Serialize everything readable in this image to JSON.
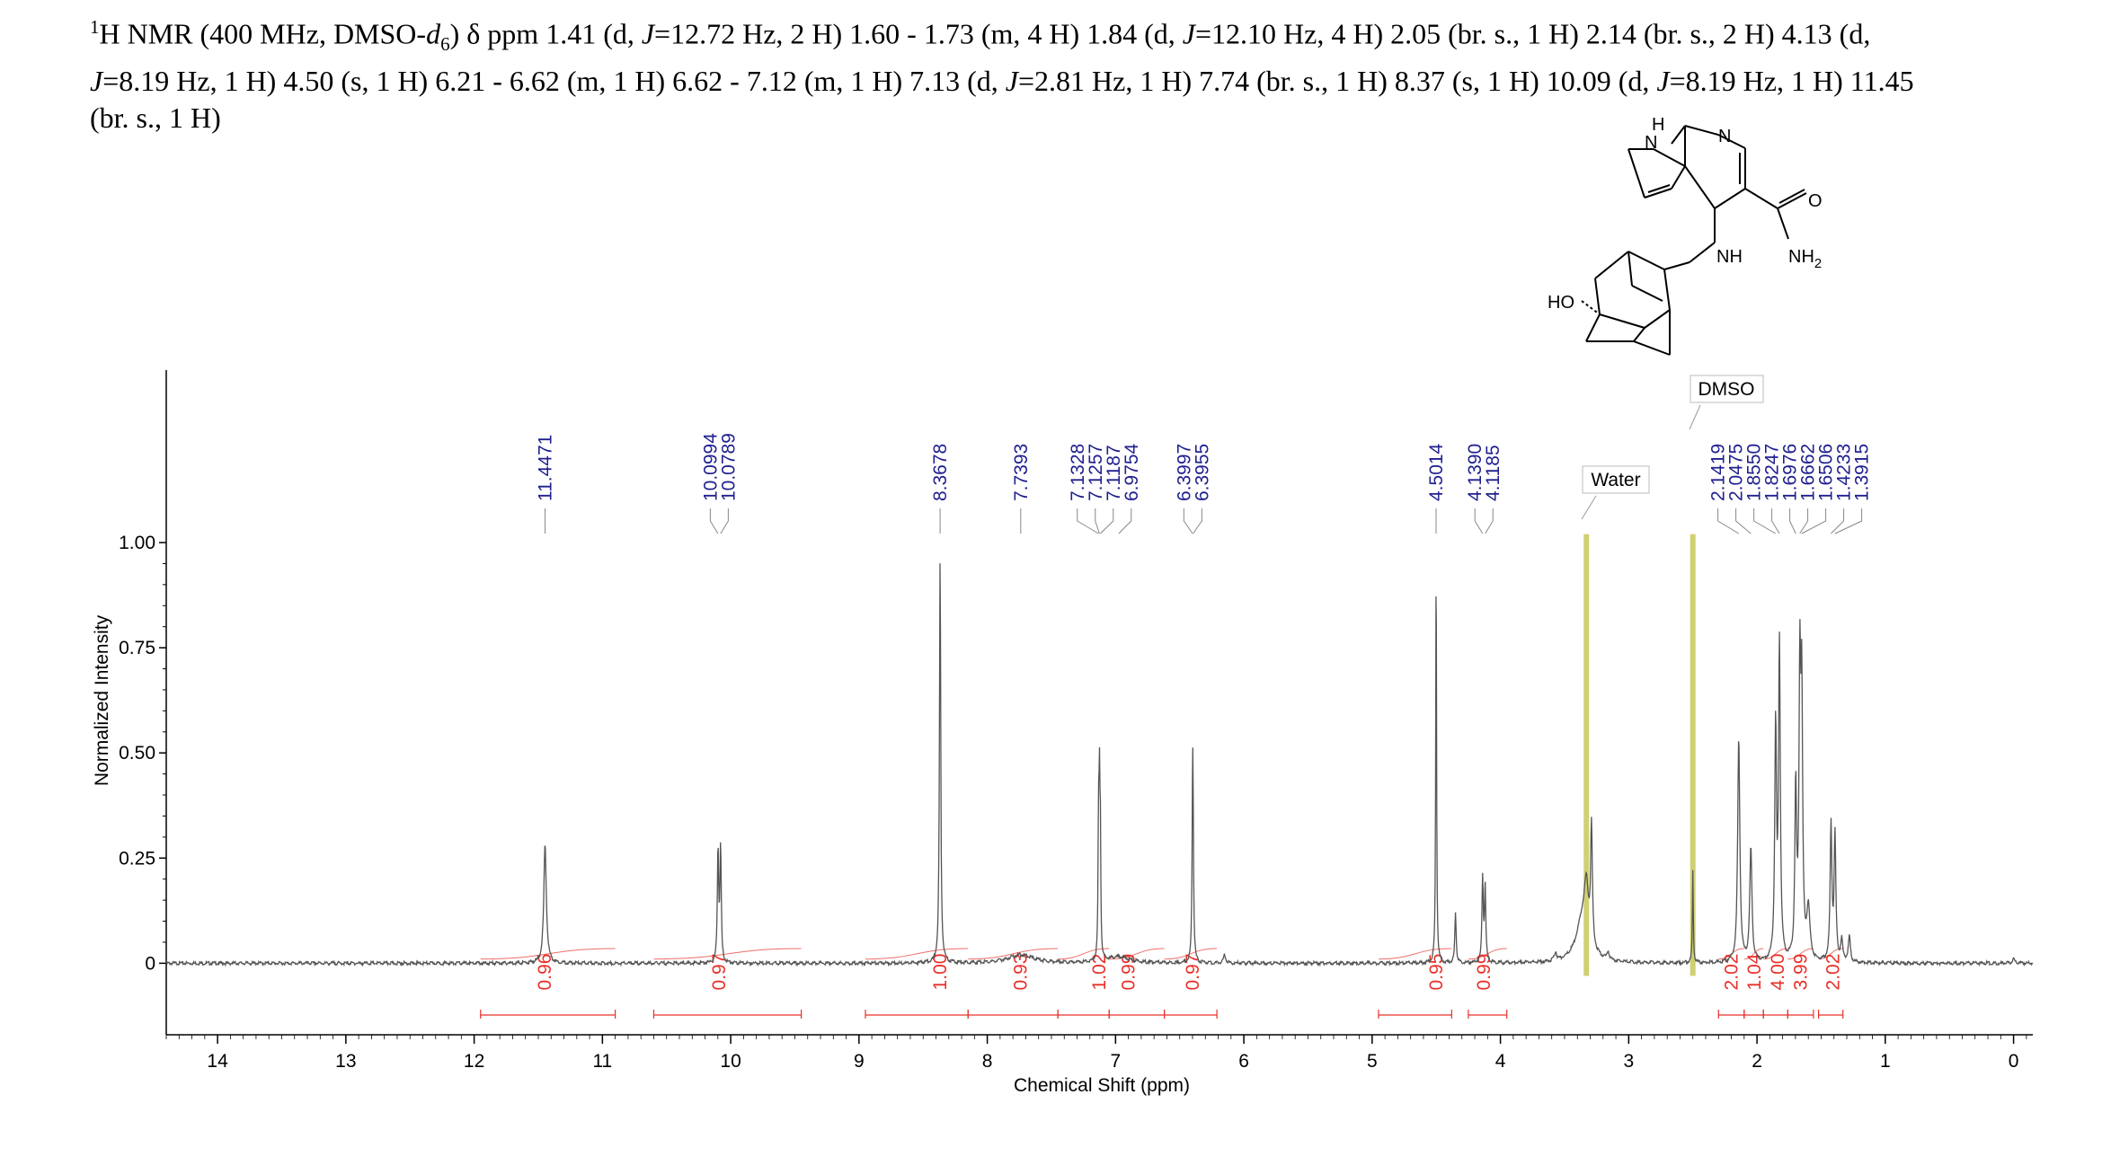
{
  "header": {
    "prefix": "1",
    "line1a": "H NMR (400 MHz, DMSO-",
    "line1_d": "d",
    "line1_sub": "6",
    "line1b": ") δ ppm 1.41 (d, ",
    "j1": "J",
    "line1c": "=12.72 Hz, 2 H) 1.60 - 1.73 (m, 4 H) 1.84 (d, ",
    "j2": "J",
    "line1d": "=12.10 Hz, 4 H) 2.05 (br. s., 1 H) 2.14 (br. s., 2 H) 4.13 (d,",
    "j3": "J",
    "line2a": "=8.19 Hz, 1 H) 4.50 (s, 1 H) 6.21 - 6.62 (m, 1 H) 6.62 - 7.12 (m, 1 H) 7.13 (d, ",
    "j4": "J",
    "line2b": "=2.81 Hz, 1 H) 7.74 (br. s., 1 H) 8.37 (s, 1 H) 10.09 (d, ",
    "j5": "J",
    "line2c": "=8.19 Hz, 1 H) 11.45",
    "line3": "(br. s., 1 H)"
  },
  "molecule_labels": {
    "h": "H",
    "n1": "N",
    "n2": "N",
    "o": "O",
    "nh2": "NH",
    "nh2_sub": "2",
    "nh": "NH",
    "ho": "HO"
  },
  "colors": {
    "spectrum": "#555555",
    "peak_label": "#1f1f8f",
    "integral": "#e8302a",
    "solvent_band": "#c8c85a",
    "axis": "#000000"
  },
  "chart_data": {
    "type": "line",
    "xlabel": "Chemical Shift (ppm)",
    "ylabel": "Normalized Intensity",
    "xlim": [
      14.4,
      -0.15
    ],
    "ylim": [
      -0.17,
      1.41
    ],
    "x_ticks": [
      "14",
      "13",
      "12",
      "11",
      "10",
      "9",
      "8",
      "7",
      "6",
      "5",
      "4",
      "3",
      "2",
      "1",
      "0"
    ],
    "y_ticks": [
      "0",
      "0.25",
      "0.50",
      "0.75",
      "1.00"
    ],
    "annotations": [
      "Water",
      "DMSO"
    ],
    "solvent_bands": [
      3.33,
      2.5
    ],
    "peak_labels": [
      {
        "shift": 11.4471,
        "label": "11.4471"
      },
      {
        "shift": 10.0994,
        "label": "10.0994"
      },
      {
        "shift": 10.0789,
        "label": "10.0789"
      },
      {
        "shift": 8.3678,
        "label": "8.3678"
      },
      {
        "shift": 7.7393,
        "label": "7.7393"
      },
      {
        "shift": 7.1328,
        "label": "7.1328"
      },
      {
        "shift": 7.1257,
        "label": "7.1257"
      },
      {
        "shift": 7.1187,
        "label": "7.1187"
      },
      {
        "shift": 6.9754,
        "label": "6.9754"
      },
      {
        "shift": 6.3997,
        "label": "6.3997"
      },
      {
        "shift": 6.3955,
        "label": "6.3955"
      },
      {
        "shift": 4.5014,
        "label": "4.5014"
      },
      {
        "shift": 4.139,
        "label": "4.1390"
      },
      {
        "shift": 4.1185,
        "label": "4.1185"
      },
      {
        "shift": 2.1419,
        "label": "2.1419"
      },
      {
        "shift": 2.0475,
        "label": "2.0475"
      },
      {
        "shift": 1.855,
        "label": "1.8550"
      },
      {
        "shift": 1.8247,
        "label": "1.8247"
      },
      {
        "shift": 1.6976,
        "label": "1.6976"
      },
      {
        "shift": 1.6662,
        "label": "1.6662"
      },
      {
        "shift": 1.6506,
        "label": "1.6506"
      },
      {
        "shift": 1.4233,
        "label": "1.4233"
      },
      {
        "shift": 1.3915,
        "label": "1.3915"
      }
    ],
    "integrals": [
      {
        "from": 11.95,
        "to": 10.9,
        "value": "0.96",
        "at": 11.45
      },
      {
        "from": 10.6,
        "to": 9.45,
        "value": "0.97",
        "at": 10.09
      },
      {
        "from": 8.95,
        "to": 8.15,
        "value": "1.00",
        "at": 8.37
      },
      {
        "from": 8.15,
        "to": 7.45,
        "value": "0.93",
        "at": 7.74
      },
      {
        "from": 7.45,
        "to": 7.05,
        "value": "1.02",
        "at": 7.13
      },
      {
        "from": 7.05,
        "to": 6.62,
        "value": "0.99",
        "at": 6.9
      },
      {
        "from": 6.62,
        "to": 6.21,
        "value": "0.97",
        "at": 6.4
      },
      {
        "from": 4.95,
        "to": 4.38,
        "value": "0.95",
        "at": 4.5
      },
      {
        "from": 4.25,
        "to": 3.95,
        "value": "0.99",
        "at": 4.13
      },
      {
        "from": 2.3,
        "to": 2.1,
        "value": "2.02",
        "at": 2.2
      },
      {
        "from": 2.1,
        "to": 1.95,
        "value": "1.04",
        "at": 2.02
      },
      {
        "from": 1.95,
        "to": 1.76,
        "value": "4.00",
        "at": 1.84
      },
      {
        "from": 1.76,
        "to": 1.56,
        "value": "3.99",
        "at": 1.66
      },
      {
        "from": 1.52,
        "to": 1.33,
        "value": "2.02",
        "at": 1.41
      }
    ],
    "peaks": [
      {
        "shift": 11.447,
        "height": 0.28,
        "width": 0.012
      },
      {
        "shift": 10.099,
        "height": 0.27,
        "width": 0.006
      },
      {
        "shift": 10.079,
        "height": 0.27,
        "width": 0.006
      },
      {
        "shift": 8.368,
        "height": 0.96,
        "width": 0.006
      },
      {
        "shift": 7.739,
        "height": 0.02,
        "width": 0.12
      },
      {
        "shift": 7.133,
        "height": 0.3,
        "width": 0.004
      },
      {
        "shift": 7.126,
        "height": 0.38,
        "width": 0.004
      },
      {
        "shift": 7.119,
        "height": 0.3,
        "width": 0.004
      },
      {
        "shift": 6.975,
        "height": 0.015,
        "width": 0.1
      },
      {
        "shift": 6.4,
        "height": 0.3,
        "width": 0.005
      },
      {
        "shift": 6.396,
        "height": 0.3,
        "width": 0.005
      },
      {
        "shift": 6.15,
        "height": 0.02,
        "width": 0.01
      },
      {
        "shift": 4.501,
        "height": 1.0,
        "width": 0.004
      },
      {
        "shift": 4.35,
        "height": 0.12,
        "width": 0.006
      },
      {
        "shift": 4.139,
        "height": 0.2,
        "width": 0.006
      },
      {
        "shift": 4.119,
        "height": 0.18,
        "width": 0.006
      },
      {
        "shift": 3.57,
        "height": 0.02,
        "width": 0.01
      },
      {
        "shift": 3.36,
        "height": 0.1,
        "width": 0.06
      },
      {
        "shift": 3.33,
        "height": 0.12,
        "width": 0.02
      },
      {
        "shift": 3.29,
        "height": 0.28,
        "width": 0.008
      },
      {
        "shift": 3.16,
        "height": 0.02,
        "width": 0.01
      },
      {
        "shift": 2.5,
        "height": 0.22,
        "width": 0.004
      },
      {
        "shift": 2.142,
        "height": 0.53,
        "width": 0.01
      },
      {
        "shift": 2.048,
        "height": 0.27,
        "width": 0.01
      },
      {
        "shift": 1.855,
        "height": 0.55,
        "width": 0.008
      },
      {
        "shift": 1.825,
        "height": 0.75,
        "width": 0.008
      },
      {
        "shift": 1.698,
        "height": 0.4,
        "width": 0.008
      },
      {
        "shift": 1.666,
        "height": 0.65,
        "width": 0.008
      },
      {
        "shift": 1.651,
        "height": 0.6,
        "width": 0.008
      },
      {
        "shift": 1.6,
        "height": 0.12,
        "width": 0.015
      },
      {
        "shift": 1.423,
        "height": 0.32,
        "width": 0.008
      },
      {
        "shift": 1.392,
        "height": 0.3,
        "width": 0.008
      },
      {
        "shift": 1.34,
        "height": 0.05,
        "width": 0.01
      },
      {
        "shift": 1.28,
        "height": 0.06,
        "width": 0.01
      },
      {
        "shift": 0.0,
        "height": 0.01,
        "width": 0.01
      }
    ]
  }
}
